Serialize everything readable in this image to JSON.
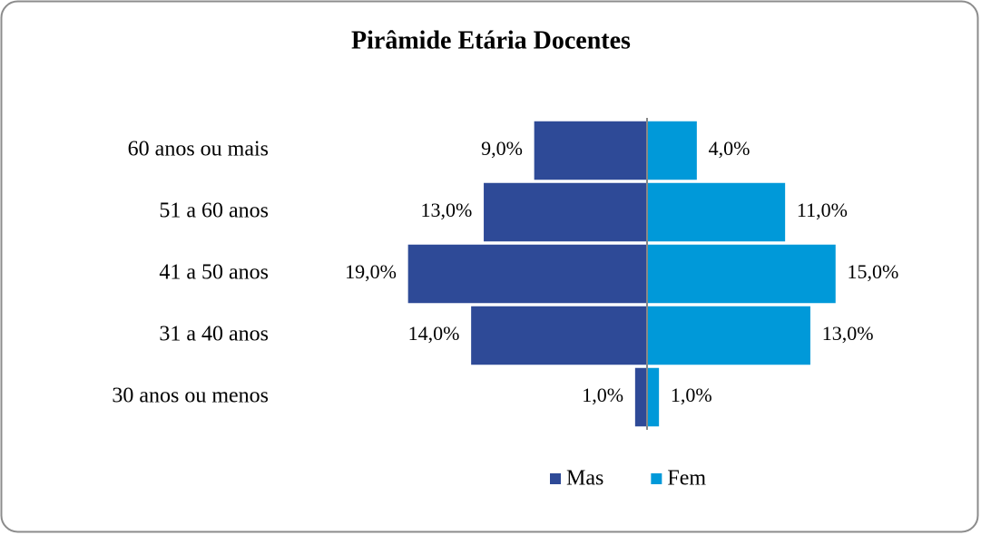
{
  "chart_data": {
    "type": "pyramid",
    "title": "Pirâmide Etária Docentes",
    "categories": [
      "60 anos ou mais",
      "51 a 60 anos",
      "41 a 50 anos",
      "31 a 40 anos",
      "30 anos ou menos"
    ],
    "series": [
      {
        "name": "Mas",
        "color": "#2e4a97",
        "values": [
          9,
          13,
          19,
          14,
          1
        ],
        "value_labels": [
          "9,0%",
          "13,0%",
          "19,0%",
          "14,0%",
          "1,0%"
        ]
      },
      {
        "name": "Fem",
        "color": "#0099d9",
        "values": [
          4,
          11,
          15,
          13,
          1
        ],
        "value_labels": [
          "4,0%",
          "11,0%",
          "15,0%",
          "13,0%",
          "1,0%"
        ]
      }
    ],
    "legend": "bottom"
  }
}
